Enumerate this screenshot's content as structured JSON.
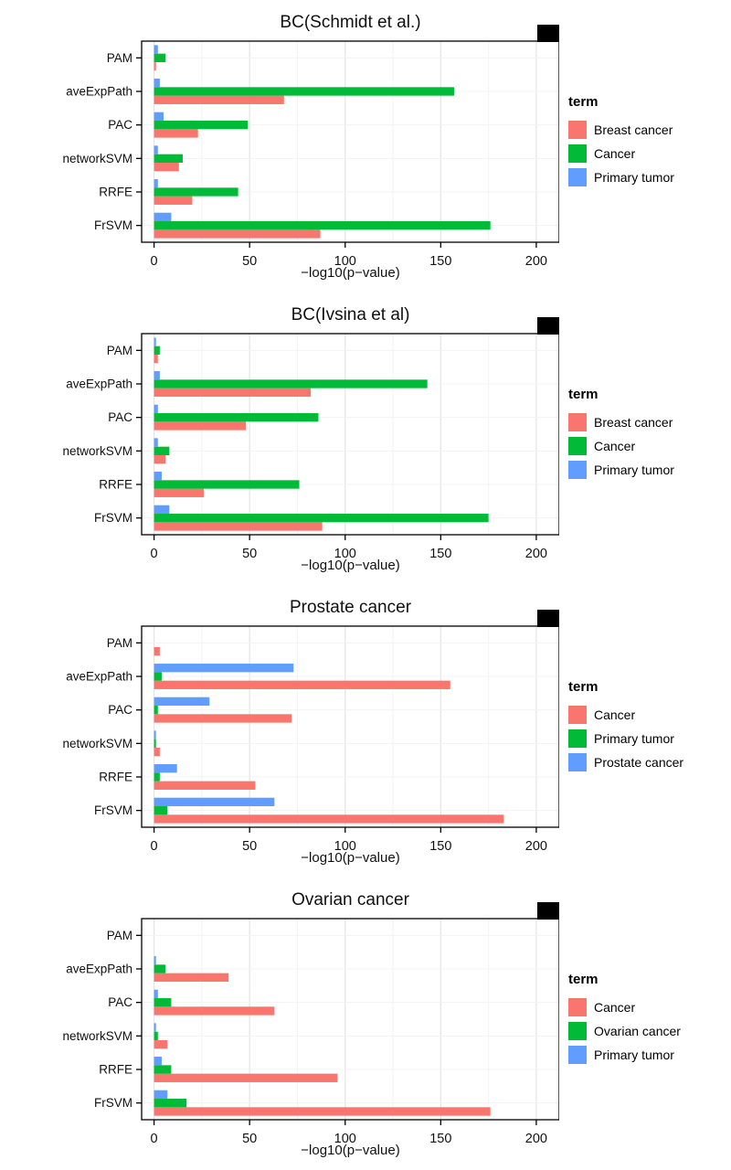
{
  "figure": {
    "xlabel": "−log10(p−value)",
    "legend_title": "term",
    "x_ticks": [
      0,
      50,
      100,
      150,
      200
    ],
    "x_minor_ticks": [
      25,
      75,
      125,
      175
    ],
    "xlim": [
      -6.5,
      212
    ],
    "categories": [
      "PAM",
      "aveExpPath",
      "PAC",
      "networkSVM",
      "RRFE",
      "FrSVM"
    ],
    "colors": {
      "salmon": "#F8766D",
      "green": "#00BA38",
      "blue": "#619CFF"
    },
    "grid_major_color": "#e4e4e4",
    "grid_minor_color": "#f3f3f3",
    "panel_border_color": "#000000"
  },
  "chart_data": [
    {
      "type": "bar",
      "orientation": "horizontal",
      "title": "BC(Schmidt et al.)",
      "xlabel": "−log10(p−value)",
      "categories": [
        "PAM",
        "aveExpPath",
        "PAC",
        "networkSVM",
        "RRFE",
        "FrSVM"
      ],
      "series": [
        {
          "name": "Breast cancer",
          "color": "#F8766D",
          "values": [
            1,
            68,
            23,
            13,
            20,
            87
          ]
        },
        {
          "name": "Cancer",
          "color": "#00BA38",
          "values": [
            6,
            157,
            49,
            15,
            44,
            176
          ]
        },
        {
          "name": "Primary tumor",
          "color": "#619CFF",
          "values": [
            2,
            3,
            5,
            2,
            2,
            9
          ]
        }
      ]
    },
    {
      "type": "bar",
      "orientation": "horizontal",
      "title": "BC(Ivsina et al)",
      "xlabel": "−log10(p−value)",
      "categories": [
        "PAM",
        "aveExpPath",
        "PAC",
        "networkSVM",
        "RRFE",
        "FrSVM"
      ],
      "series": [
        {
          "name": "Breast cancer",
          "color": "#F8766D",
          "values": [
            2,
            82,
            48,
            6,
            26,
            88
          ]
        },
        {
          "name": "Cancer",
          "color": "#00BA38",
          "values": [
            3,
            143,
            86,
            8,
            76,
            175
          ]
        },
        {
          "name": "Primary tumor",
          "color": "#619CFF",
          "values": [
            1,
            3,
            2,
            2,
            4,
            8
          ]
        }
      ]
    },
    {
      "type": "bar",
      "orientation": "horizontal",
      "title": "Prostate cancer",
      "xlabel": "−log10(p−value)",
      "categories": [
        "PAM",
        "aveExpPath",
        "PAC",
        "networkSVM",
        "RRFE",
        "FrSVM"
      ],
      "series": [
        {
          "name": "Cancer",
          "color": "#F8766D",
          "values": [
            3,
            155,
            72,
            3,
            53,
            183
          ]
        },
        {
          "name": "Primary tumor",
          "color": "#00BA38",
          "values": [
            0,
            4,
            2,
            1,
            3,
            7
          ]
        },
        {
          "name": "Prostate cancer",
          "color": "#619CFF",
          "values": [
            0,
            73,
            29,
            1,
            12,
            63
          ]
        }
      ]
    },
    {
      "type": "bar",
      "orientation": "horizontal",
      "title": "Ovarian cancer",
      "xlabel": "−log10(p−value)",
      "categories": [
        "PAM",
        "aveExpPath",
        "PAC",
        "networkSVM",
        "RRFE",
        "FrSVM"
      ],
      "series": [
        {
          "name": "Cancer",
          "color": "#F8766D",
          "values": [
            0,
            39,
            63,
            7,
            96,
            176
          ]
        },
        {
          "name": "Ovarian cancer",
          "color": "#00BA38",
          "values": [
            0,
            6,
            9,
            2,
            9,
            17
          ]
        },
        {
          "name": "Primary tumor",
          "color": "#619CFF",
          "values": [
            0,
            1,
            2,
            1,
            4,
            7
          ]
        }
      ]
    }
  ]
}
